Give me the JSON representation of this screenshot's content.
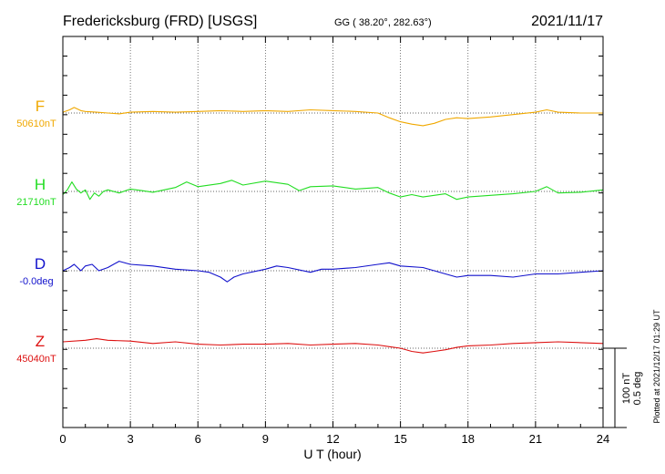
{
  "header": {
    "station": "Fredericksburg (FRD)  [USGS]",
    "coords": "GG ( 38.20°, 282.63°)",
    "date": "2021/11/17"
  },
  "side_note": "Plotted at 2021/12/17 01:29 UT",
  "scale_labels": [
    "100 nT",
    "0.5 deg"
  ],
  "chart_data": {
    "type": "line",
    "title": "Fredericksburg (FRD)  [USGS]",
    "xlabel": "U T (hour)",
    "ylabel": "",
    "xlim": [
      0,
      24
    ],
    "xticks": [
      0,
      3,
      6,
      9,
      12,
      15,
      18,
      21,
      24
    ],
    "xtick_labels": [
      "0",
      "3",
      "6",
      "9",
      "12",
      "15",
      "18",
      "21",
      "24"
    ],
    "grid": true,
    "scale_bar": {
      "nT": 100,
      "deg": 0.5
    },
    "series": [
      {
        "name": "F",
        "baseline_label": "50610nT",
        "baseline": 50610,
        "unit": "nT",
        "color": "#f0a800",
        "x": [
          0,
          0.3,
          0.5,
          0.8,
          1,
          1.5,
          2,
          2.5,
          3,
          4,
          5,
          6,
          7,
          8,
          9,
          10,
          11,
          12,
          13,
          14,
          14.5,
          15,
          15.5,
          16,
          16.5,
          17,
          17.5,
          18,
          19,
          20,
          21,
          21.5,
          22,
          23,
          24
        ],
        "values": [
          50611,
          50614,
          50617,
          50613,
          50612,
          50611,
          50610,
          50609,
          50611,
          50612,
          50611,
          50612,
          50613,
          50612,
          50613,
          50612,
          50614,
          50613,
          50612,
          50610,
          50604,
          50599,
          50596,
          50594,
          50597,
          50602,
          50604,
          50603,
          50605,
          50608,
          50611,
          50614,
          50611,
          50610,
          50610
        ]
      },
      {
        "name": "H",
        "baseline_label": "21710nT",
        "baseline": 21710,
        "unit": "nT",
        "color": "#22dd22",
        "x": [
          0,
          0.2,
          0.4,
          0.6,
          0.8,
          1,
          1.2,
          1.4,
          1.6,
          1.8,
          2,
          2.5,
          3,
          3.5,
          4,
          5,
          5.5,
          6,
          7,
          7.5,
          8,
          9,
          10,
          10.5,
          11,
          12,
          13,
          14,
          14.5,
          15,
          15.5,
          16,
          17,
          17.5,
          18,
          19,
          20,
          21,
          21.5,
          22,
          23,
          24
        ],
        "values": [
          21706,
          21712,
          21722,
          21713,
          21708,
          21712,
          21700,
          21708,
          21704,
          21710,
          21712,
          21708,
          21713,
          21711,
          21709,
          21715,
          21722,
          21716,
          21720,
          21724,
          21718,
          21723,
          21719,
          21711,
          21716,
          21717,
          21713,
          21715,
          21708,
          21703,
          21706,
          21703,
          21707,
          21700,
          21703,
          21705,
          21707,
          21710,
          21716,
          21708,
          21709,
          21712
        ]
      },
      {
        "name": "D",
        "baseline_label": "-0.0deg",
        "baseline": 0.0,
        "unit": "deg",
        "color": "#1111cc",
        "x": [
          0,
          0.3,
          0.5,
          0.8,
          1,
          1.3,
          1.6,
          2,
          2.5,
          3,
          4,
          5,
          6,
          6.5,
          7,
          7.3,
          7.6,
          8,
          9,
          9.5,
          10,
          11,
          11.5,
          12,
          13,
          14,
          14.5,
          15,
          16,
          17,
          17.5,
          18,
          19,
          20,
          21,
          22,
          23,
          24
        ],
        "values": [
          0.0,
          0.02,
          0.04,
          0.0,
          0.03,
          0.04,
          0.0,
          0.02,
          0.06,
          0.04,
          0.03,
          0.01,
          0.0,
          -0.01,
          -0.04,
          -0.07,
          -0.04,
          -0.02,
          0.01,
          0.03,
          0.02,
          -0.01,
          0.01,
          0.01,
          0.02,
          0.04,
          0.05,
          0.03,
          0.02,
          -0.02,
          -0.04,
          -0.03,
          -0.03,
          -0.04,
          -0.02,
          -0.02,
          -0.01,
          0.0
        ]
      },
      {
        "name": "Z",
        "baseline_label": "45040nT",
        "baseline": 45040,
        "unit": "nT",
        "color": "#dd1111",
        "x": [
          0,
          1,
          1.5,
          2,
          3,
          4,
          5,
          6,
          7,
          8,
          9,
          10,
          11,
          12,
          13,
          14,
          14.5,
          15,
          15.5,
          16,
          16.5,
          17,
          17.5,
          18,
          19,
          20,
          21,
          22,
          23,
          24
        ],
        "values": [
          45048,
          45050,
          45052,
          45050,
          45049,
          45046,
          45048,
          45045,
          45044,
          45045,
          45045,
          45046,
          45044,
          45045,
          45046,
          45044,
          45042,
          45040,
          45036,
          45034,
          45036,
          45038,
          45041,
          45043,
          45044,
          45046,
          45047,
          45048,
          45047,
          45046
        ]
      }
    ]
  }
}
